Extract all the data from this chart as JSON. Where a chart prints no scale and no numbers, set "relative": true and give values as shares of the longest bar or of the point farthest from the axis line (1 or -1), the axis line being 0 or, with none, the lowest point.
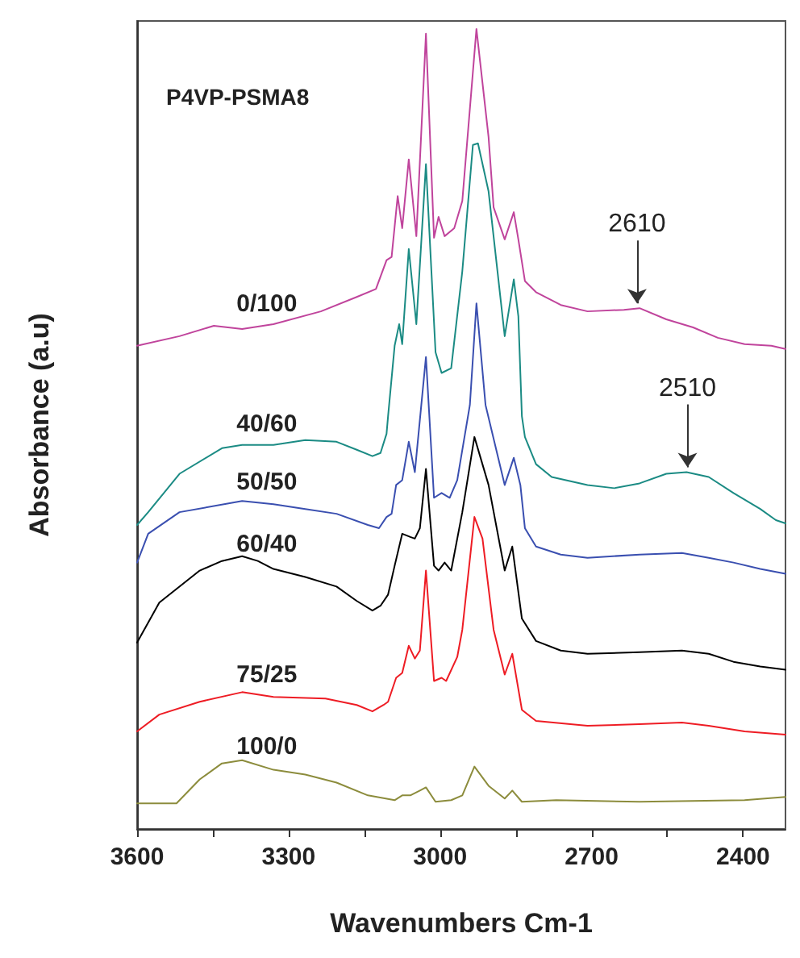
{
  "chart_data": {
    "type": "line",
    "title": "P4VP-PSMA8",
    "xlabel": "Wavenumbers Cm-1",
    "ylabel": "Absorbance (a.u)",
    "relative": true,
    "xlim": [
      3600,
      2316
    ],
    "xticks": [
      3600,
      {
        "value": 3450,
        "label": null
      },
      3300,
      {
        "value": 3150,
        "label": null
      },
      3000,
      {
        "value": 2850,
        "label": null
      },
      2700,
      {
        "value": 2550,
        "label": null
      },
      2400
    ],
    "tick_labels": "x",
    "grid": false,
    "legend": false,
    "marker": "none",
    "line_style": "solid",
    "annotations": [
      {
        "text": "2610",
        "x": 2610,
        "y": 0.651
      },
      {
        "text": "2510",
        "x": 2510,
        "y": 0.446
      }
    ],
    "series": [
      {
        "name": "0/100",
        "color": "#c0449c",
        "x": [
          3600,
          3516,
          3448,
          3392,
          3330,
          3236,
          3165,
          3127,
          3106,
          3096,
          3084,
          3075,
          3062,
          3047,
          3028,
          3012,
          3003,
          2991,
          2972,
          2956,
          2928,
          2904,
          2894,
          2872,
          2854,
          2845,
          2832,
          2810,
          2761,
          2708,
          2636,
          2605,
          2552,
          2499,
          2450,
          2397,
          2344,
          2316
        ],
        "values": [
          0.604,
          0.616,
          0.629,
          0.625,
          0.631,
          0.647,
          0.665,
          0.675,
          0.711,
          0.715,
          0.791,
          0.751,
          0.837,
          0.741,
          0.994,
          0.739,
          0.765,
          0.741,
          0.751,
          0.785,
          1.0,
          0.865,
          0.777,
          0.737,
          0.771,
          0.737,
          0.685,
          0.671,
          0.655,
          0.647,
          0.649,
          0.651,
          0.637,
          0.627,
          0.614,
          0.606,
          0.604,
          0.6
        ]
      },
      {
        "name": "40/60",
        "color": "#1b8b84",
        "x": [
          3600,
          3578,
          3516,
          3432,
          3392,
          3330,
          3267,
          3205,
          3165,
          3134,
          3118,
          3106,
          3103,
          3090,
          3081,
          3075,
          3062,
          3047,
          3028,
          3009,
          2997,
          2978,
          2956,
          2935,
          2925,
          2904,
          2872,
          2854,
          2845,
          2838,
          2832,
          2810,
          2779,
          2708,
          2655,
          2605,
          2552,
          2512,
          2468,
          2419,
          2366,
          2335,
          2316
        ],
        "values": [
          0.38,
          0.396,
          0.444,
          0.476,
          0.48,
          0.48,
          0.486,
          0.484,
          0.474,
          0.466,
          0.47,
          0.494,
          0.516,
          0.604,
          0.631,
          0.606,
          0.725,
          0.631,
          0.831,
          0.596,
          0.57,
          0.576,
          0.697,
          0.855,
          0.857,
          0.797,
          0.616,
          0.687,
          0.641,
          0.516,
          0.49,
          0.456,
          0.44,
          0.43,
          0.426,
          0.432,
          0.444,
          0.446,
          0.44,
          0.42,
          0.4,
          0.386,
          0.382
        ]
      },
      {
        "name": "50/50",
        "color": "#3a4fb0",
        "x": [
          3600,
          3578,
          3516,
          3392,
          3330,
          3267,
          3205,
          3143,
          3121,
          3106,
          3096,
          3087,
          3075,
          3062,
          3050,
          3028,
          3012,
          2997,
          2981,
          2966,
          2941,
          2928,
          2910,
          2872,
          2854,
          2841,
          2832,
          2810,
          2761,
          2708,
          2605,
          2521,
          2468,
          2419,
          2366,
          2316
        ],
        "values": [
          0.333,
          0.369,
          0.396,
          0.41,
          0.406,
          0.4,
          0.394,
          0.38,
          0.376,
          0.39,
          0.394,
          0.43,
          0.436,
          0.484,
          0.446,
          0.59,
          0.414,
          0.42,
          0.414,
          0.436,
          0.53,
          0.657,
          0.53,
          0.43,
          0.464,
          0.43,
          0.376,
          0.353,
          0.343,
          0.339,
          0.343,
          0.345,
          0.339,
          0.333,
          0.325,
          0.319
        ]
      },
      {
        "name": "60/40",
        "color": "#000000",
        "x": [
          3600,
          3556,
          3476,
          3432,
          3392,
          3361,
          3330,
          3267,
          3205,
          3165,
          3134,
          3118,
          3103,
          3090,
          3075,
          3059,
          3050,
          3040,
          3028,
          3012,
          3003,
          2991,
          2978,
          2956,
          2932,
          2904,
          2872,
          2857,
          2838,
          2810,
          2761,
          2708,
          2605,
          2521,
          2468,
          2419,
          2366,
          2316
        ],
        "values": [
          0.233,
          0.283,
          0.323,
          0.335,
          0.341,
          0.335,
          0.325,
          0.315,
          0.303,
          0.285,
          0.273,
          0.279,
          0.293,
          0.329,
          0.369,
          0.365,
          0.363,
          0.376,
          0.45,
          0.329,
          0.323,
          0.333,
          0.323,
          0.396,
          0.49,
          0.43,
          0.323,
          0.353,
          0.263,
          0.235,
          0.223,
          0.219,
          0.221,
          0.223,
          0.219,
          0.209,
          0.203,
          0.199
        ]
      },
      {
        "name": "75/25",
        "color": "#ee1c24",
        "x": [
          3600,
          3556,
          3476,
          3392,
          3330,
          3227,
          3165,
          3134,
          3112,
          3103,
          3087,
          3075,
          3062,
          3050,
          3040,
          3028,
          3012,
          2997,
          2988,
          2966,
          2956,
          2932,
          2916,
          2894,
          2872,
          2857,
          2838,
          2810,
          2708,
          2605,
          2521,
          2468,
          2397,
          2316
        ],
        "values": [
          0.122,
          0.143,
          0.159,
          0.171,
          0.165,
          0.163,
          0.155,
          0.147,
          0.155,
          0.159,
          0.189,
          0.195,
          0.229,
          0.213,
          0.223,
          0.323,
          0.185,
          0.189,
          0.185,
          0.215,
          0.249,
          0.39,
          0.363,
          0.249,
          0.193,
          0.219,
          0.149,
          0.135,
          0.129,
          0.131,
          0.133,
          0.129,
          0.122,
          0.118
        ]
      },
      {
        "name": "100/0",
        "color": "#8c8c3c",
        "x": [
          3600,
          3556,
          3522,
          3476,
          3432,
          3392,
          3330,
          3267,
          3205,
          3143,
          3090,
          3075,
          3059,
          3040,
          3028,
          3009,
          2978,
          2956,
          2932,
          2904,
          2872,
          2857,
          2838,
          2770,
          2605,
          2397,
          2316
        ],
        "values": [
          0.032,
          0.032,
          0.032,
          0.062,
          0.082,
          0.086,
          0.074,
          0.068,
          0.058,
          0.042,
          0.036,
          0.042,
          0.042,
          0.048,
          0.052,
          0.034,
          0.036,
          0.042,
          0.078,
          0.054,
          0.038,
          0.048,
          0.034,
          0.036,
          0.034,
          0.036,
          0.04
        ]
      }
    ]
  }
}
